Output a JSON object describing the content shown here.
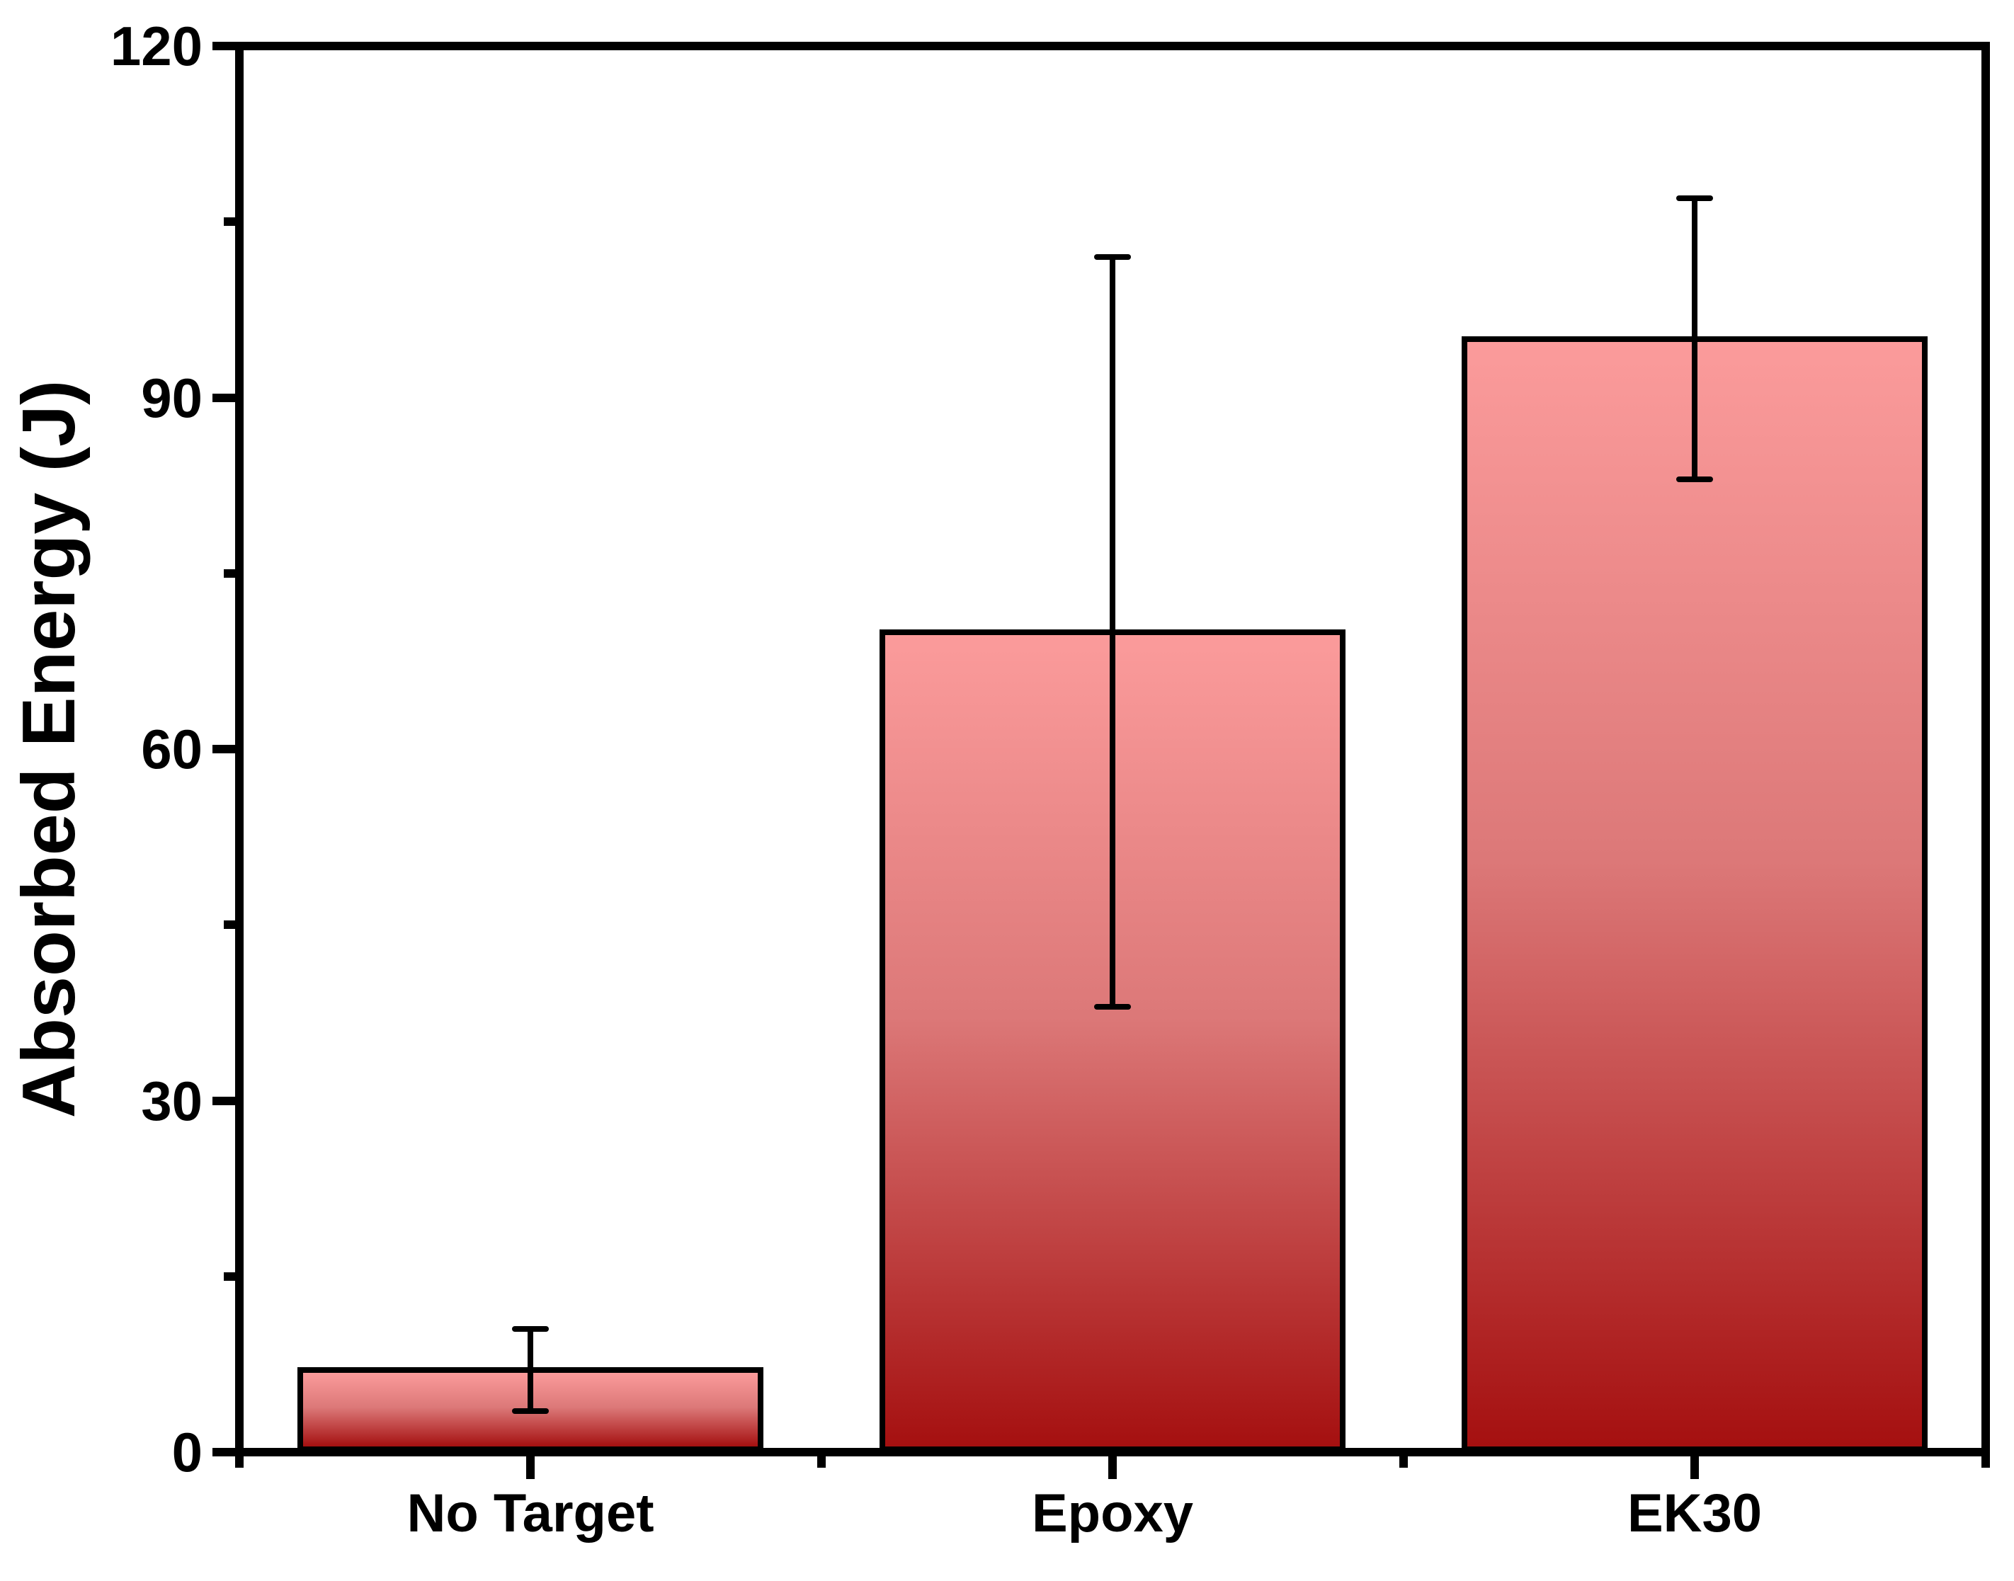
{
  "figure": {
    "background_color": "#ffffff",
    "axis_color": "#000000",
    "text_color": "#000000"
  },
  "chart_data": {
    "type": "bar",
    "title": "",
    "xlabel": "",
    "ylabel": "Absorbed Energy (J)",
    "categories": [
      "No Target",
      "Epoxy",
      "EK30"
    ],
    "values": [
      7,
      70,
      95
    ],
    "error_bars": {
      "plus": [
        3.5,
        32,
        12
      ],
      "minus": [
        3.5,
        32,
        12
      ]
    },
    "ylim": [
      0,
      120
    ],
    "y_major_ticks": [
      0,
      30,
      60,
      90,
      120
    ],
    "y_minor_ticks": [
      15,
      45,
      75,
      105
    ],
    "grid": false,
    "legend": false,
    "bar_width_fraction": 0.8,
    "bar_outline_color": "#000000",
    "bar_gradient": {
      "top": "#FB9B9B",
      "mid": "#DC7878",
      "bottom": "#A51010"
    },
    "error_bar_color": "#000000"
  }
}
